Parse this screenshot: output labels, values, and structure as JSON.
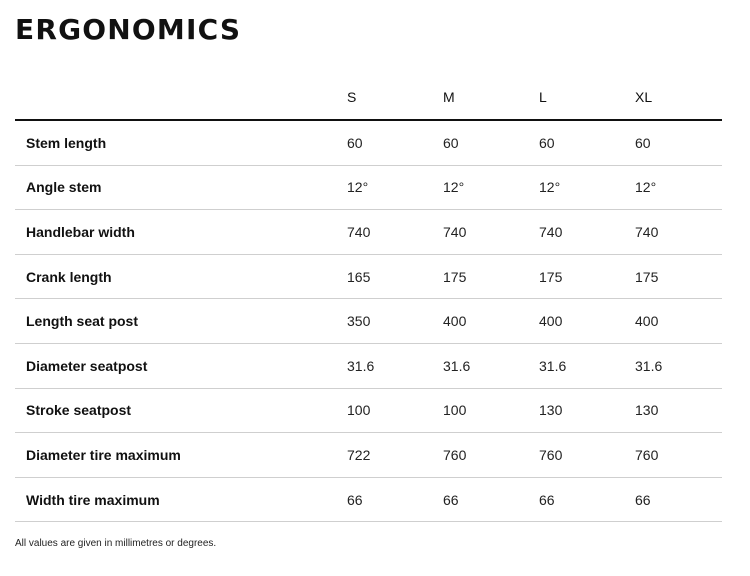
{
  "title": "ERGONOMICS",
  "sizes": [
    "S",
    "M",
    "L",
    "XL"
  ],
  "rows": [
    {
      "label": "Stem length",
      "values": [
        "60",
        "60",
        "60",
        "60"
      ]
    },
    {
      "label": "Angle stem",
      "values": [
        "12°",
        "12°",
        "12°",
        "12°"
      ]
    },
    {
      "label": "Handlebar width",
      "values": [
        "740",
        "740",
        "740",
        "740"
      ]
    },
    {
      "label": "Crank length",
      "values": [
        "165",
        "175",
        "175",
        "175"
      ]
    },
    {
      "label": "Length seat post",
      "values": [
        "350",
        "400",
        "400",
        "400"
      ]
    },
    {
      "label": "Diameter seatpost",
      "values": [
        "31.6",
        "31.6",
        "31.6",
        "31.6"
      ]
    },
    {
      "label": "Stroke seatpost",
      "values": [
        "100",
        "100",
        "130",
        "130"
      ]
    },
    {
      "label": "Diameter tire maximum",
      "values": [
        "722",
        "760",
        "760",
        "760"
      ]
    },
    {
      "label": "Width tire maximum",
      "values": [
        "66",
        "66",
        "66",
        "66"
      ]
    }
  ],
  "note": "All values are given in millimetres or degrees."
}
